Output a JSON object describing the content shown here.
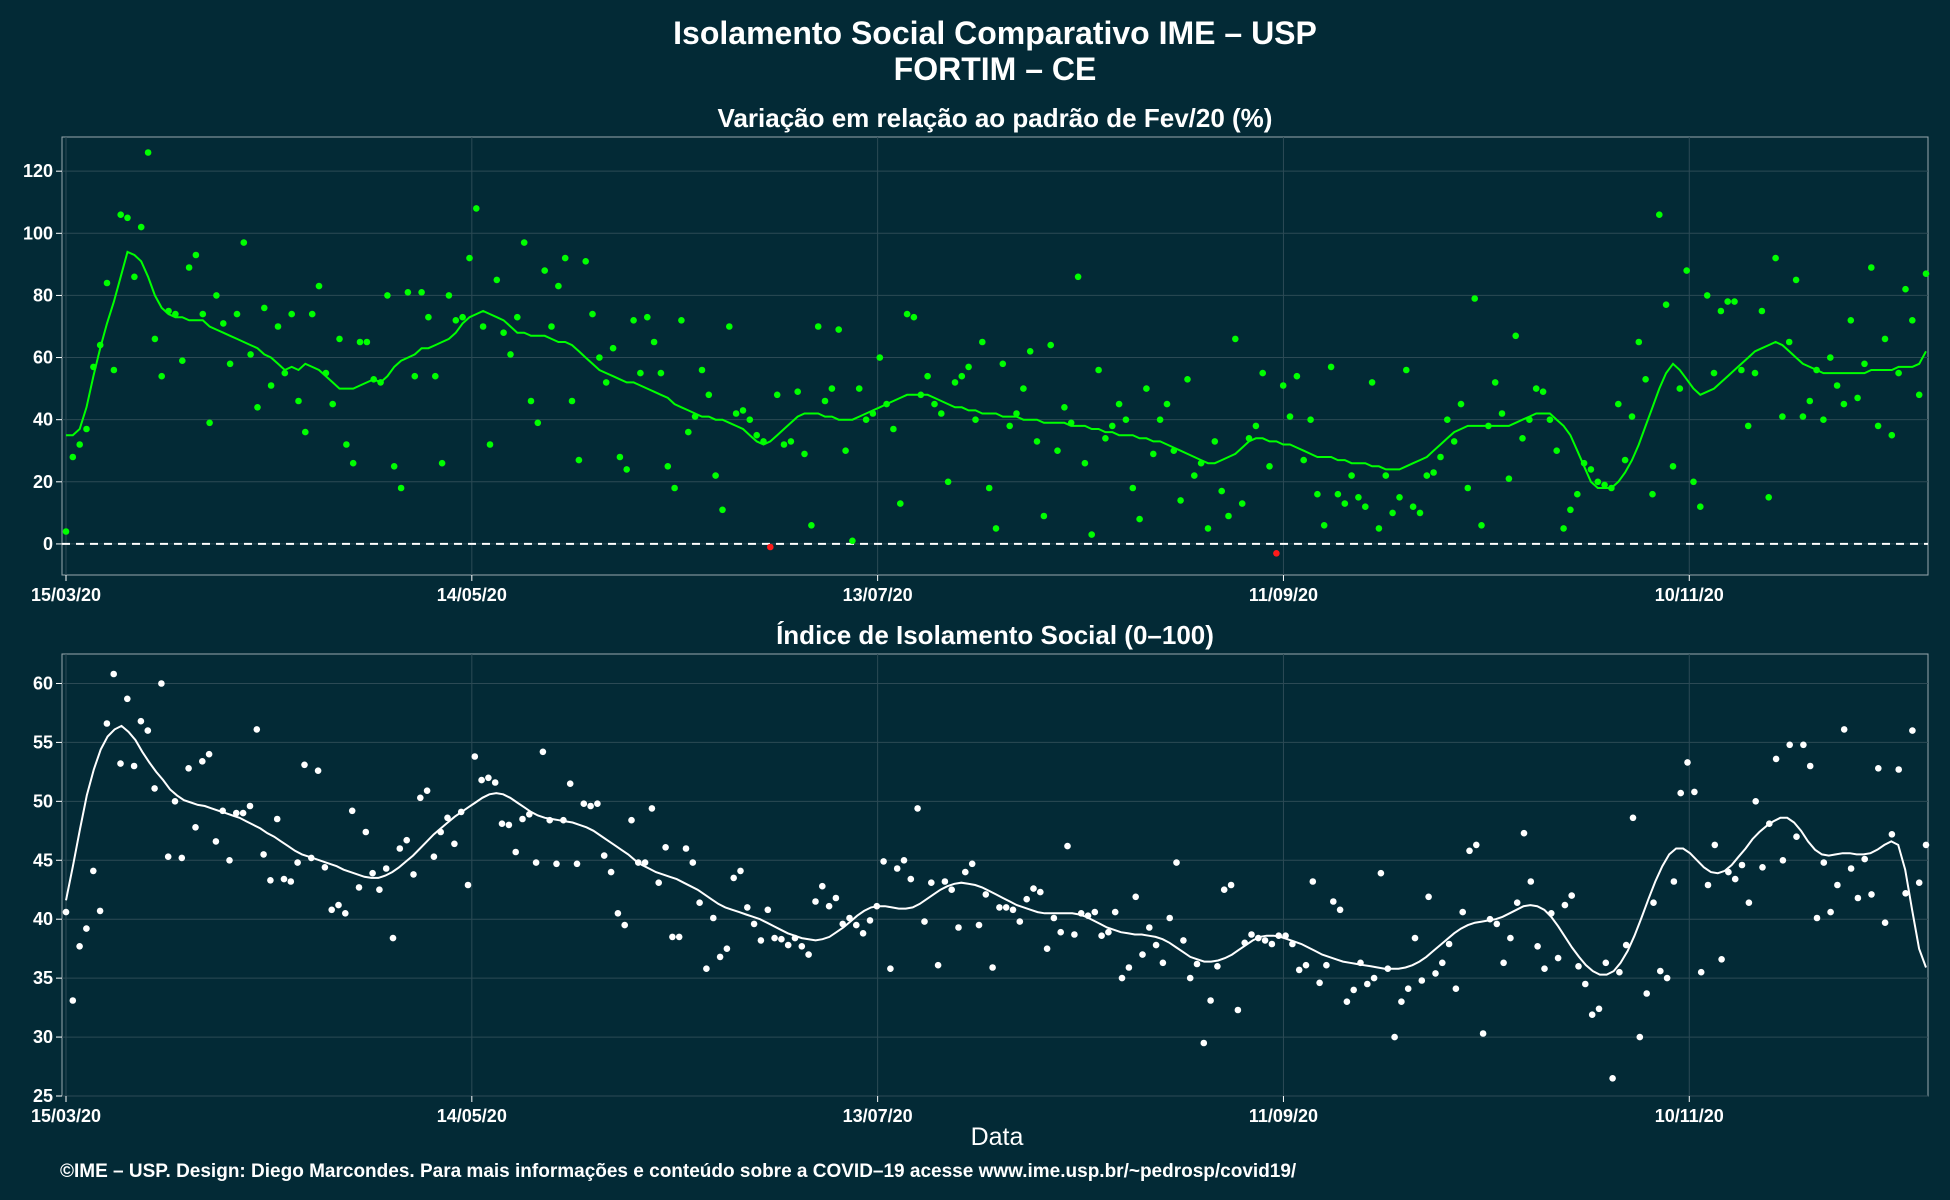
{
  "title": "Isolamento Social Comparativo IME – USP",
  "subtitle": "FORTIM – CE",
  "credit": "©IME – USP. Design: Diego Marcondes. Para mais informações e conteúdo sobre a COVID–19 acesse www.ime.usp.br/~pedrosp/covid19/",
  "colors": {
    "background": "#032a36",
    "panel_border": "#9aa8ae",
    "grid": "#2c4a55",
    "green": "#00ff00",
    "red": "#ff1a1a",
    "white": "#ffffff"
  },
  "chart_data": [
    {
      "type": "scatter",
      "title": "Variação em relação ao padrão de Fev/20 (%)",
      "xlabel": "",
      "ylabel": "",
      "x_ticks": [
        "15/03/20",
        "14/05/20",
        "13/07/20",
        "11/09/20",
        "10/11/20"
      ],
      "x_tick_offsets_days": [
        0,
        60,
        120,
        180,
        240
      ],
      "x_range_days": [
        0,
        275
      ],
      "yticks": [
        0,
        20,
        40,
        60,
        80,
        100,
        120
      ],
      "ylim": [
        -10,
        131
      ],
      "reference_line": 0,
      "point_color": "#00ff00",
      "negative_point_color": "#ff1a1a",
      "line_color": "#00ff00",
      "grid": true,
      "values": [
        4,
        28,
        32,
        37,
        57,
        64,
        84,
        56,
        106,
        105,
        86,
        102,
        126,
        66,
        54,
        75,
        74,
        59,
        89,
        93,
        74,
        39,
        80,
        71,
        58,
        74,
        97,
        61,
        44,
        76,
        51,
        70,
        55,
        74,
        46,
        36,
        74,
        83,
        55,
        45,
        66,
        32,
        26,
        65,
        65,
        53,
        52,
        80,
        25,
        18,
        81,
        54,
        81,
        73,
        54,
        26,
        80,
        72,
        73,
        92,
        108,
        70,
        32,
        85,
        68,
        61,
        73,
        97,
        46,
        39,
        88,
        70,
        83,
        92,
        46,
        27,
        91,
        74,
        60,
        52,
        63,
        28,
        24,
        72,
        55,
        73,
        65,
        55,
        25,
        18,
        72,
        36,
        41,
        56,
        48,
        22,
        11,
        70,
        42,
        43,
        40,
        35,
        33,
        -1,
        48,
        32,
        33,
        49,
        29,
        6,
        70,
        46,
        50,
        69,
        30,
        1,
        50,
        40,
        42,
        60,
        45,
        37,
        13,
        74,
        73,
        48,
        54,
        45,
        42,
        20,
        52,
        54,
        57,
        40,
        65,
        18,
        5,
        58,
        38,
        42,
        50,
        62,
        33,
        9,
        64,
        30,
        44,
        39,
        86,
        26,
        3,
        56,
        34,
        38,
        45,
        40,
        18,
        8,
        50,
        29,
        40,
        45,
        30,
        14,
        53,
        22,
        26,
        5,
        33,
        17,
        9,
        66,
        13,
        34,
        38,
        55,
        25,
        -3,
        51,
        41,
        54,
        27,
        40,
        16,
        6,
        57,
        16,
        13,
        22,
        15,
        12,
        52,
        5,
        22,
        10,
        15,
        56,
        12,
        10,
        22,
        23,
        28,
        40,
        33,
        45,
        18,
        79,
        6,
        38,
        52,
        42,
        21,
        67,
        34,
        40,
        50,
        49,
        40,
        30,
        5,
        11,
        16,
        26,
        24,
        20,
        19,
        18,
        45,
        27,
        41,
        65,
        53,
        16,
        106,
        77,
        25,
        50,
        88,
        20,
        12,
        80,
        55,
        75,
        78,
        78,
        56,
        38,
        55,
        75,
        15,
        92,
        41,
        65,
        85,
        41,
        46,
        56,
        40,
        60,
        51,
        45,
        72,
        47,
        58,
        89,
        38,
        66,
        35,
        55,
        82,
        72,
        48,
        87
      ],
      "smooth": [
        35,
        35,
        37,
        44,
        54,
        63,
        71,
        78,
        86,
        94,
        93,
        91,
        86,
        80,
        76,
        74,
        73,
        73,
        72,
        72,
        72,
        70,
        69,
        68,
        67,
        66,
        65,
        64,
        63,
        61,
        60,
        58,
        56,
        57,
        56,
        58,
        57,
        56,
        54,
        52,
        50,
        50,
        50,
        51,
        52,
        53,
        52,
        54,
        57,
        59,
        60,
        61,
        63,
        63,
        64,
        65,
        66,
        68,
        71,
        73,
        74,
        75,
        74,
        73,
        72,
        70,
        68,
        68,
        67,
        67,
        67,
        66,
        65,
        65,
        64,
        62,
        60,
        58,
        56,
        55,
        54,
        53,
        52,
        52,
        51,
        50,
        49,
        48,
        47,
        45,
        44,
        43,
        42,
        41,
        41,
        40,
        40,
        39,
        38,
        37,
        35,
        33,
        32,
        33,
        35,
        37,
        39,
        41,
        42,
        42,
        42,
        41,
        41,
        40,
        40,
        40,
        41,
        42,
        43,
        44,
        45,
        46,
        47,
        48,
        48,
        48,
        48,
        47,
        46,
        45,
        44,
        44,
        43,
        43,
        42,
        42,
        42,
        41,
        41,
        41,
        40,
        40,
        40,
        39,
        39,
        39,
        39,
        38,
        38,
        38,
        37,
        37,
        36,
        36,
        35,
        35,
        35,
        34,
        34,
        33,
        33,
        32,
        31,
        30,
        29,
        28,
        27,
        26,
        26,
        27,
        28,
        29,
        31,
        33,
        34,
        34,
        33,
        33,
        32,
        32,
        31,
        30,
        29,
        28,
        28,
        28,
        27,
        27,
        26,
        26,
        26,
        25,
        25,
        24,
        24,
        24,
        25,
        26,
        27,
        28,
        30,
        32,
        34,
        36,
        37,
        38,
        38,
        38,
        38,
        38,
        38,
        38,
        39,
        40,
        41,
        42,
        42,
        42,
        40,
        38,
        35,
        30,
        25,
        20,
        18,
        18,
        18,
        20,
        23,
        27,
        32,
        38,
        44,
        50,
        55,
        58,
        56,
        53,
        50,
        48,
        49,
        50,
        52,
        54,
        56,
        58,
        60,
        62,
        63,
        64,
        65,
        64,
        62,
        60,
        58,
        57,
        56,
        55,
        55,
        55,
        55,
        55,
        55,
        55,
        56,
        56,
        56,
        56,
        57,
        57,
        57,
        58,
        62
      ]
    },
    {
      "type": "scatter",
      "title": "Índice de Isolamento Social (0–100)",
      "xlabel": "Data",
      "ylabel": "",
      "x_ticks": [
        "15/03/20",
        "14/05/20",
        "13/07/20",
        "11/09/20",
        "10/11/20"
      ],
      "x_tick_offsets_days": [
        0,
        60,
        120,
        180,
        240
      ],
      "x_range_days": [
        0,
        275
      ],
      "yticks": [
        25,
        30,
        35,
        40,
        45,
        50,
        55,
        60
      ],
      "ylim": [
        25,
        62.5
      ],
      "point_color": "#ffffff",
      "line_color": "#ffffff",
      "grid": true,
      "values": [
        40.6,
        33.1,
        37.7,
        39.2,
        44.1,
        40.7,
        56.6,
        60.8,
        53.2,
        58.7,
        53.0,
        56.8,
        56.0,
        51.1,
        60.0,
        45.3,
        50.0,
        45.2,
        52.8,
        47.8,
        53.4,
        54.0,
        46.6,
        49.2,
        45.0,
        49.0,
        49.0,
        49.6,
        56.1,
        45.5,
        43.3,
        48.5,
        43.4,
        43.2,
        44.8,
        53.1,
        45.2,
        52.6,
        44.4,
        40.8,
        41.2,
        40.5,
        49.2,
        42.7,
        47.4,
        43.9,
        42.5,
        44.3,
        38.4,
        46.0,
        46.7,
        43.8,
        50.3,
        50.9,
        45.3,
        47.4,
        48.6,
        46.4,
        49.1,
        42.9,
        53.8,
        51.8,
        52.0,
        51.6,
        48.1,
        48.0,
        45.7,
        48.5,
        48.9,
        44.8,
        54.2,
        48.4,
        44.7,
        48.4,
        51.5,
        44.7,
        49.8,
        49.6,
        49.8,
        45.4,
        44.0,
        40.5,
        39.5,
        48.4,
        44.8,
        44.8,
        49.4,
        43.1,
        46.1,
        38.5,
        38.5,
        46.0,
        44.8,
        41.4,
        35.8,
        40.1,
        36.8,
        37.5,
        43.5,
        44.1,
        41.0,
        39.6,
        38.2,
        40.8,
        38.4,
        38.3,
        37.8,
        38.4,
        37.7,
        37.0,
        41.5,
        42.8,
        41.1,
        41.8,
        39.6,
        40.1,
        39.5,
        38.8,
        39.9,
        41.1,
        44.9,
        35.8,
        44.3,
        45.0,
        43.4,
        49.4,
        39.8,
        43.1,
        36.1,
        43.2,
        42.5,
        39.3,
        44.0,
        44.7,
        39.5,
        42.1,
        35.9,
        41.0,
        41.0,
        40.8,
        39.8,
        41.7,
        42.6,
        42.3,
        37.5,
        40.1,
        38.9,
        46.2,
        38.7,
        40.5,
        40.3,
        40.6,
        38.6,
        38.9,
        40.6,
        35.0,
        35.9,
        41.9,
        37.0,
        39.3,
        37.8,
        36.3,
        40.1,
        44.8,
        38.2,
        35.0,
        36.2,
        29.5,
        33.1,
        36.0,
        42.5,
        42.9,
        32.3,
        38.0,
        38.7,
        38.4,
        38.2,
        37.9,
        38.6,
        38.6,
        37.9,
        35.7,
        36.1,
        43.2,
        34.6,
        36.1,
        41.5,
        40.8,
        33.0,
        34.0,
        36.3,
        34.5,
        35.0,
        43.9,
        35.8,
        30.0,
        33.0,
        34.1,
        38.4,
        34.8,
        41.9,
        35.4,
        36.3,
        37.9,
        34.1,
        40.6,
        45.8,
        46.3,
        30.3,
        40.0,
        39.6,
        36.3,
        38.4,
        41.4,
        47.3,
        43.2,
        37.7,
        35.8,
        40.5,
        36.7,
        41.2,
        42.0,
        36.0,
        34.5,
        31.9,
        32.4,
        36.3,
        26.5,
        35.5,
        37.8,
        48.6,
        30.0,
        33.7,
        41.4,
        35.6,
        35.0,
        43.2,
        50.7,
        53.3,
        50.8,
        35.5,
        42.9,
        46.3,
        36.6,
        44.0,
        43.4,
        44.6,
        41.4,
        50.0,
        44.4,
        48.1,
        53.6,
        45.0,
        54.8,
        47.0,
        54.8,
        53.0,
        40.1,
        44.8,
        40.6,
        42.9,
        56.1,
        44.3,
        41.8,
        45.1,
        42.1,
        52.8,
        39.7,
        47.2,
        52.7,
        42.2,
        56.0,
        43.1,
        46.3
      ],
      "smooth": [
        41.6,
        44.5,
        47.6,
        50.5,
        52.7,
        54.4,
        55.5,
        56.1,
        56.4,
        55.9,
        55.2,
        54.2,
        53.3,
        52.5,
        51.8,
        51.0,
        50.5,
        50.1,
        49.9,
        49.7,
        49.6,
        49.4,
        49.2,
        49.0,
        48.8,
        48.6,
        48.3,
        48.0,
        47.7,
        47.3,
        47.0,
        46.6,
        46.2,
        45.8,
        45.5,
        45.3,
        45.1,
        44.9,
        44.7,
        44.5,
        44.2,
        44.0,
        43.8,
        43.6,
        43.5,
        43.5,
        43.7,
        44.0,
        44.4,
        44.9,
        45.4,
        46.0,
        46.6,
        47.2,
        47.7,
        48.2,
        48.7,
        49.1,
        49.5,
        49.9,
        50.3,
        50.6,
        50.7,
        50.6,
        50.3,
        49.9,
        49.5,
        49.1,
        48.8,
        48.6,
        48.5,
        48.4,
        48.3,
        48.2,
        48.0,
        47.8,
        47.5,
        47.1,
        46.7,
        46.3,
        45.9,
        45.5,
        45.0,
        44.6,
        44.3,
        44.0,
        43.8,
        43.6,
        43.4,
        43.1,
        42.8,
        42.5,
        42.1,
        41.7,
        41.3,
        41.0,
        40.8,
        40.6,
        40.4,
        40.2,
        40.0,
        39.7,
        39.4,
        39.1,
        38.8,
        38.6,
        38.4,
        38.3,
        38.2,
        38.3,
        38.5,
        38.9,
        39.3,
        39.8,
        40.3,
        40.7,
        41.0,
        41.1,
        41.1,
        41.0,
        40.9,
        40.9,
        41.0,
        41.3,
        41.7,
        42.1,
        42.5,
        42.8,
        43.0,
        43.1,
        43.0,
        42.9,
        42.7,
        42.4,
        42.1,
        41.8,
        41.5,
        41.2,
        41.0,
        40.8,
        40.6,
        40.5,
        40.5,
        40.5,
        40.5,
        40.5,
        40.4,
        40.2,
        39.9,
        39.6,
        39.3,
        39.1,
        38.9,
        38.8,
        38.7,
        38.7,
        38.6,
        38.5,
        38.3,
        38.0,
        37.6,
        37.2,
        36.8,
        36.6,
        36.4,
        36.4,
        36.5,
        36.7,
        37.0,
        37.4,
        37.8,
        38.2,
        38.5,
        38.6,
        38.6,
        38.5,
        38.3,
        38.1,
        37.9,
        37.6,
        37.3,
        37.0,
        36.8,
        36.6,
        36.4,
        36.3,
        36.2,
        36.1,
        36.0,
        35.9,
        35.8,
        35.8,
        35.8,
        35.9,
        36.1,
        36.4,
        36.8,
        37.3,
        37.8,
        38.3,
        38.8,
        39.2,
        39.5,
        39.7,
        39.8,
        39.9,
        40.0,
        40.2,
        40.5,
        40.8,
        41.1,
        41.2,
        41.1,
        40.8,
        40.2,
        39.4,
        38.5,
        37.6,
        36.8,
        36.1,
        35.6,
        35.3,
        35.3,
        35.6,
        36.3,
        37.3,
        38.6,
        40.1,
        41.7,
        43.2,
        44.5,
        45.5,
        46.0,
        46.0,
        45.6,
        45.0,
        44.4,
        44.0,
        43.9,
        44.1,
        44.6,
        45.3,
        46.0,
        46.8,
        47.4,
        47.9,
        48.3,
        48.6,
        48.6,
        48.2,
        47.5,
        46.6,
        45.9,
        45.5,
        45.4,
        45.5,
        45.6,
        45.6,
        45.5,
        45.5,
        45.6,
        45.9,
        46.3,
        46.6,
        46.3,
        44.2,
        40.8,
        37.5,
        35.9
      ]
    }
  ]
}
